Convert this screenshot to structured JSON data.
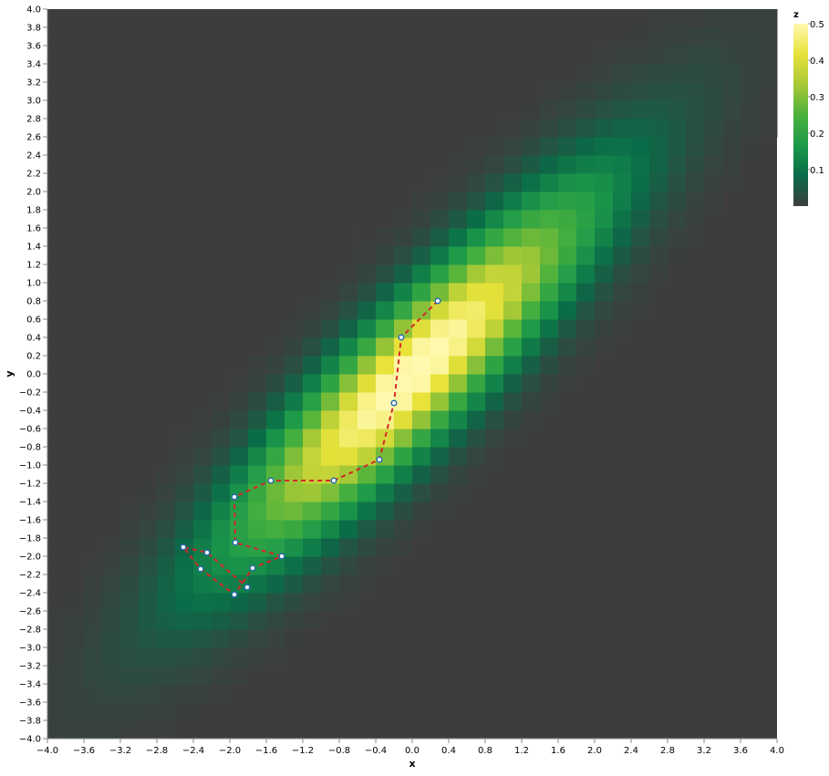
{
  "chart_data": {
    "type": "heatmap",
    "title": "",
    "xlabel": "x",
    "ylabel": "y",
    "xlim": [
      -4.0,
      4.0
    ],
    "ylim": [
      -4.0,
      4.0
    ],
    "x_ticks": [
      -4.0,
      -3.6,
      -3.2,
      -2.8,
      -2.4,
      -2.0,
      -1.6,
      -1.2,
      -0.8,
      -0.4,
      0.0,
      0.4,
      0.8,
      1.2,
      1.6,
      2.0,
      2.4,
      2.8,
      3.2,
      3.6,
      4.0
    ],
    "x_tick_labels": [
      "−4.0",
      "−3.6",
      "−3.2",
      "−2.8",
      "−2.4",
      "−2.0",
      "−1.6",
      "−1.2",
      "−0.8",
      "−0.4",
      "0.0",
      "0.4",
      "0.8",
      "1.2",
      "1.6",
      "2.0",
      "2.4",
      "2.8",
      "3.2",
      "3.6",
      "4.0"
    ],
    "y_ticks": [
      4.0,
      3.8,
      3.6,
      3.4,
      3.2,
      3.0,
      2.8,
      2.6,
      2.4,
      2.2,
      2.0,
      1.8,
      1.6,
      1.4,
      1.2,
      1.0,
      0.8,
      0.6,
      0.4,
      0.2,
      0.0,
      -0.2,
      -0.4,
      -0.6,
      -0.8,
      -1.0,
      -1.2,
      -1.4,
      -1.6,
      -1.8,
      -2.0,
      -2.2,
      -2.4,
      -2.6,
      -2.8,
      -3.0,
      -3.2,
      -3.4,
      -3.6,
      -3.8,
      -4.0
    ],
    "y_tick_labels": [
      "4.0",
      "3.8",
      "3.6",
      "3.4",
      "3.2",
      "3.0",
      "2.8",
      "2.6",
      "2.4",
      "2.2",
      "2.0",
      "1.8",
      "1.6",
      "1.4",
      "1.2",
      "1.0",
      "0.8",
      "0.6",
      "0.4",
      "0.2",
      "0.0",
      "−0.2",
      "−0.4",
      "−0.6",
      "−0.8",
      "−1.0",
      "−1.2",
      "−1.4",
      "−1.6",
      "−1.8",
      "−2.0",
      "−2.2",
      "−2.4",
      "−2.6",
      "−2.8",
      "−3.0",
      "−3.2",
      "−3.4",
      "−3.6",
      "−3.8",
      "−4.0"
    ],
    "heatmap": {
      "cell_size": 0.2,
      "density": {
        "peak": 0.52,
        "correlation": 0.9,
        "sigma_x": 1.35,
        "sigma_y": 1.35,
        "center": [
          0.0,
          0.0
        ]
      }
    },
    "colorbar": {
      "title": "z",
      "min": 0.0,
      "max": 0.5,
      "ticks": [
        0.1,
        0.2,
        0.3,
        0.4,
        0.5
      ],
      "tick_labels": [
        "0.1",
        "0.2",
        "0.3",
        "0.4",
        "0.5"
      ],
      "stops": [
        "#3d3d3d",
        "#0a6b48",
        "#1c9a4a",
        "#4bb13c",
        "#a8c936",
        "#e8e23a",
        "#fff9b0"
      ]
    },
    "series": [
      {
        "type": "line",
        "style": "dashed",
        "color": "#d62626",
        "marker_fill": "#ffffff",
        "marker_stroke": "#2a6db0",
        "points": [
          {
            "x": 0.28,
            "y": 0.8
          },
          {
            "x": -0.12,
            "y": 0.4
          },
          {
            "x": -0.2,
            "y": -0.32
          },
          {
            "x": -0.36,
            "y": -0.94
          },
          {
            "x": -0.86,
            "y": -1.17
          },
          {
            "x": -1.55,
            "y": -1.17
          },
          {
            "x": -1.95,
            "y": -1.35
          },
          {
            "x": -1.94,
            "y": -1.85
          },
          {
            "x": -1.43,
            "y": -2.0
          },
          {
            "x": -1.75,
            "y": -2.13
          },
          {
            "x": -1.95,
            "y": -2.42
          },
          {
            "x": -2.32,
            "y": -2.14
          },
          {
            "x": -2.51,
            "y": -1.9
          },
          {
            "x": -2.25,
            "y": -1.96
          },
          {
            "x": -1.81,
            "y": -2.34
          }
        ]
      }
    ]
  }
}
